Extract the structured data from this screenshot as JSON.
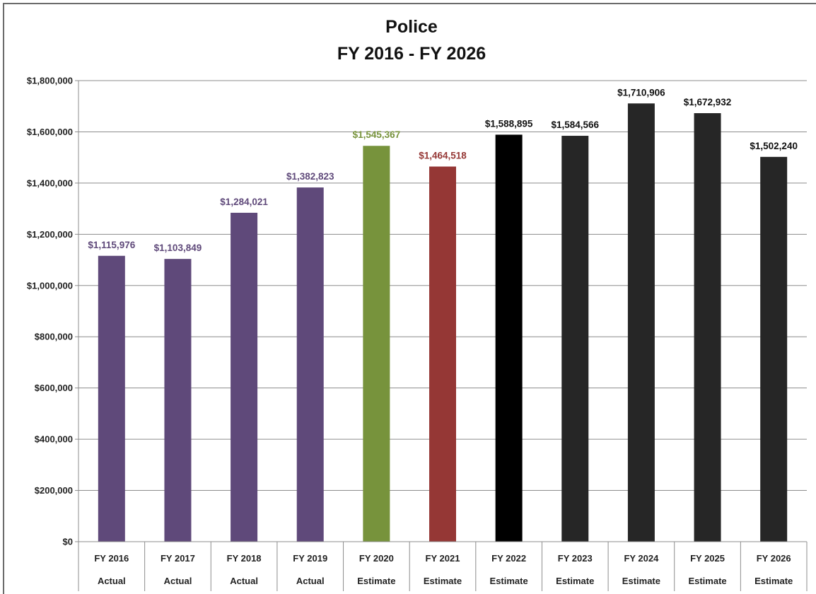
{
  "chart_data": {
    "type": "bar",
    "title": [
      "Police",
      "FY 2016 - FY 2026"
    ],
    "xlabel": "",
    "ylabel": "",
    "ylim": [
      0,
      1800000
    ],
    "yticks": [
      0,
      200000,
      400000,
      600000,
      800000,
      1000000,
      1200000,
      1400000,
      1600000,
      1800000
    ],
    "ytick_labels": [
      "$0",
      "$200,000",
      "$400,000",
      "$600,000",
      "$800,000",
      "$1,000,000",
      "$1,200,000",
      "$1,400,000",
      "$1,600,000",
      "$1,800,000"
    ],
    "grid": true,
    "legend": "none",
    "categories": [
      "FY 2016",
      "FY 2017",
      "FY 2018",
      "FY 2019",
      "FY 2020",
      "FY 2021",
      "FY 2022",
      "FY 2023",
      "FY 2024",
      "FY 2025",
      "FY 2026"
    ],
    "category_sublabels": [
      "Actual",
      "Actual",
      "Actual",
      "Actual",
      "Estimate",
      "Estimate",
      "Estimate",
      "Estimate",
      "Estimate",
      "Estimate",
      "Estimate"
    ],
    "values": [
      1115976,
      1103849,
      1284021,
      1382823,
      1545367,
      1464518,
      1588895,
      1584566,
      1710906,
      1672932,
      1502240
    ],
    "data_labels": [
      "$1,115,976",
      "$1,103,849",
      "$1,284,021",
      "$1,382,823",
      "$1,545,367",
      "$1,464,518",
      "$1,588,895",
      "$1,584,566",
      "$1,710,906",
      "$1,672,932",
      "$1,502,240"
    ],
    "bar_colors": [
      "#5f497a",
      "#5f497a",
      "#5f497a",
      "#5f497a",
      "#77933c",
      "#953735",
      "#000000",
      "#262626",
      "#262626",
      "#262626",
      "#262626"
    ],
    "label_colors": [
      "#5f497a",
      "#5f497a",
      "#5f497a",
      "#5f497a",
      "#77933c",
      "#953735",
      "#111111",
      "#111111",
      "#111111",
      "#111111",
      "#111111"
    ]
  }
}
